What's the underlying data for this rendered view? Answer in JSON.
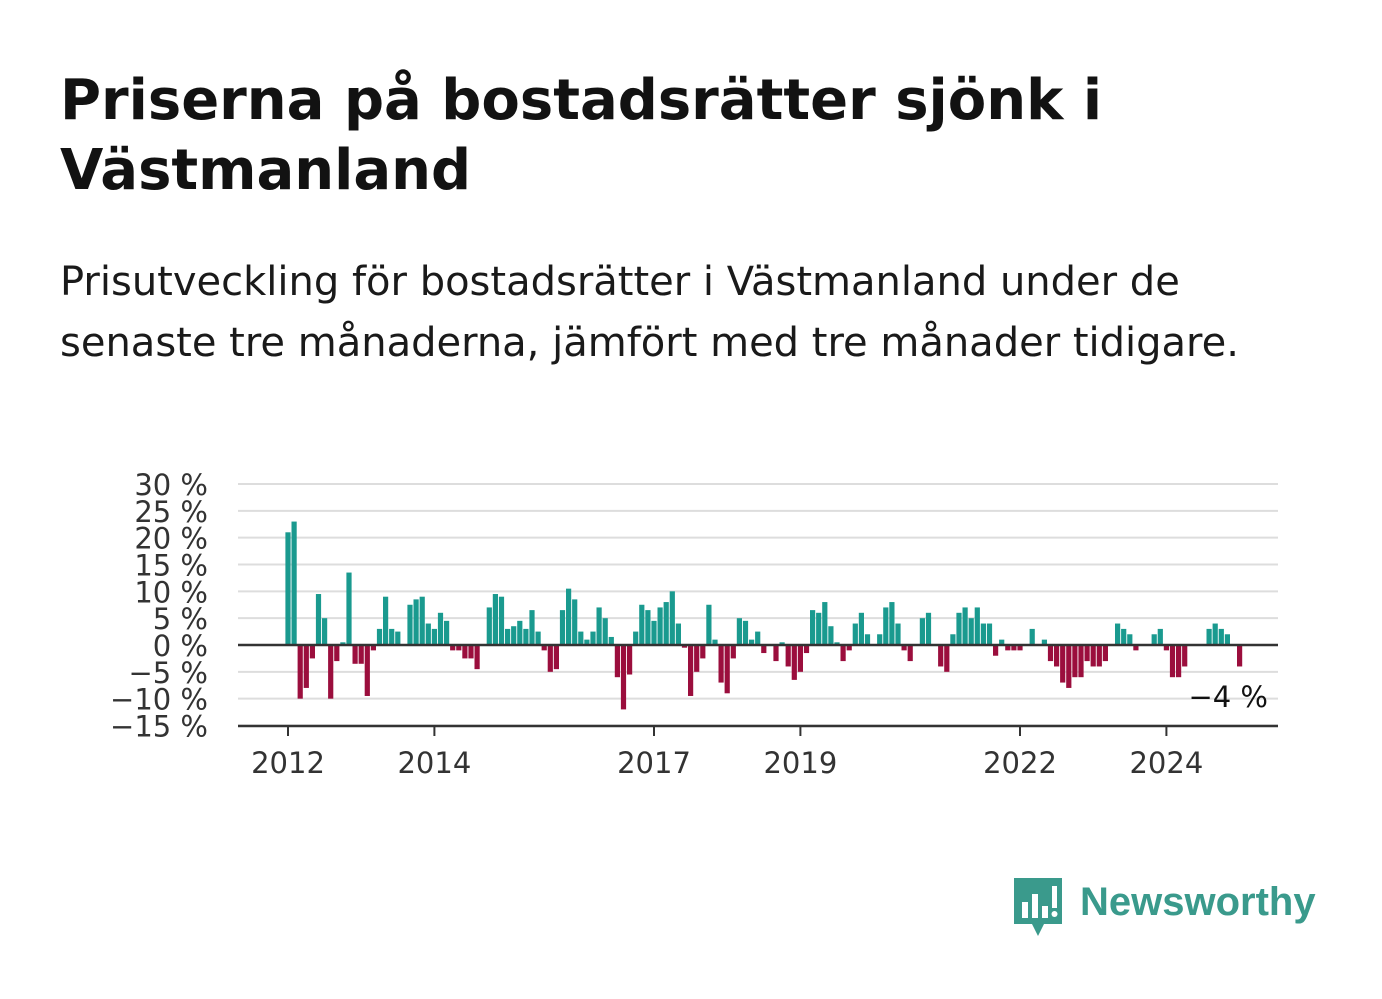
{
  "title": "Priserna på bostadsrätter sjönk i Västmanland",
  "subtitle": "Prisutveckling för bostadsrätter i Västmanland under de senaste tre månaderna, jämfört med tre månader tidigare.",
  "brand": {
    "name": "Newsworthy",
    "color": "#3a9a8c"
  },
  "colors": {
    "positive": "#1a9a8f",
    "negative": "#9b0e3d",
    "grid": "#dddddd",
    "axis": "#333333"
  },
  "chart_data": {
    "type": "bar",
    "start_year": 2012,
    "y_ticks": [
      30,
      25,
      20,
      15,
      10,
      5,
      0,
      -5,
      -10,
      -15
    ],
    "y_tick_labels": [
      "30 %",
      "25 %",
      "20 %",
      "15 %",
      "10 %",
      "5 %",
      "0 %",
      "−5 %",
      "−10 %",
      "−15 %"
    ],
    "ylim": [
      -15,
      30
    ],
    "x_tick_labels": [
      "2012",
      "2014",
      "2017",
      "2019",
      "2022",
      "2024"
    ],
    "x_tick_years": [
      2012,
      2014,
      2017,
      2019,
      2022,
      2024
    ],
    "annotation": "−4 %",
    "grid": true,
    "values": [
      21,
      23,
      -10,
      -8,
      -2.5,
      9.5,
      5,
      -10,
      -3,
      0.5,
      13.5,
      -3.5,
      -3.5,
      -9.5,
      -1,
      3,
      9,
      3,
      2.5,
      0,
      7.5,
      8.5,
      9,
      4,
      3,
      6,
      4.5,
      -1,
      -1,
      -2.5,
      -2.5,
      -4.5,
      0,
      7,
      9.5,
      9,
      3,
      3.5,
      4.5,
      3,
      6.5,
      2.5,
      -1,
      -5,
      -4.5,
      6.5,
      10.5,
      8.5,
      2.5,
      1,
      2.5,
      7,
      5,
      1.5,
      -6,
      -12,
      -5.5,
      2.5,
      7.5,
      6.5,
      4.5,
      7,
      8,
      10,
      4,
      -0.5,
      -9.5,
      -5,
      -2.5,
      7.5,
      1,
      -7,
      -9,
      -2.5,
      5,
      4.5,
      1,
      2.5,
      -1.5,
      0,
      -3,
      0.5,
      -4,
      -6.5,
      -5,
      -1.5,
      6.5,
      6,
      8,
      3.5,
      0.5,
      -3,
      -1,
      4,
      6,
      2,
      0,
      2,
      7,
      8,
      4,
      -1,
      -3,
      0,
      5,
      6,
      0,
      -4,
      -5,
      2,
      6,
      7,
      5,
      7,
      4,
      4,
      -2,
      1,
      -1,
      -1,
      -1,
      0,
      3,
      0,
      1,
      -3,
      -4,
      -7,
      -8,
      -6,
      -6,
      -3,
      -4,
      -4,
      -3,
      0,
      4,
      3,
      2,
      -1,
      0,
      0,
      2,
      3,
      -1,
      -6,
      -6,
      -4,
      0,
      0,
      0,
      3,
      4,
      3,
      2,
      0,
      -4
    ]
  }
}
